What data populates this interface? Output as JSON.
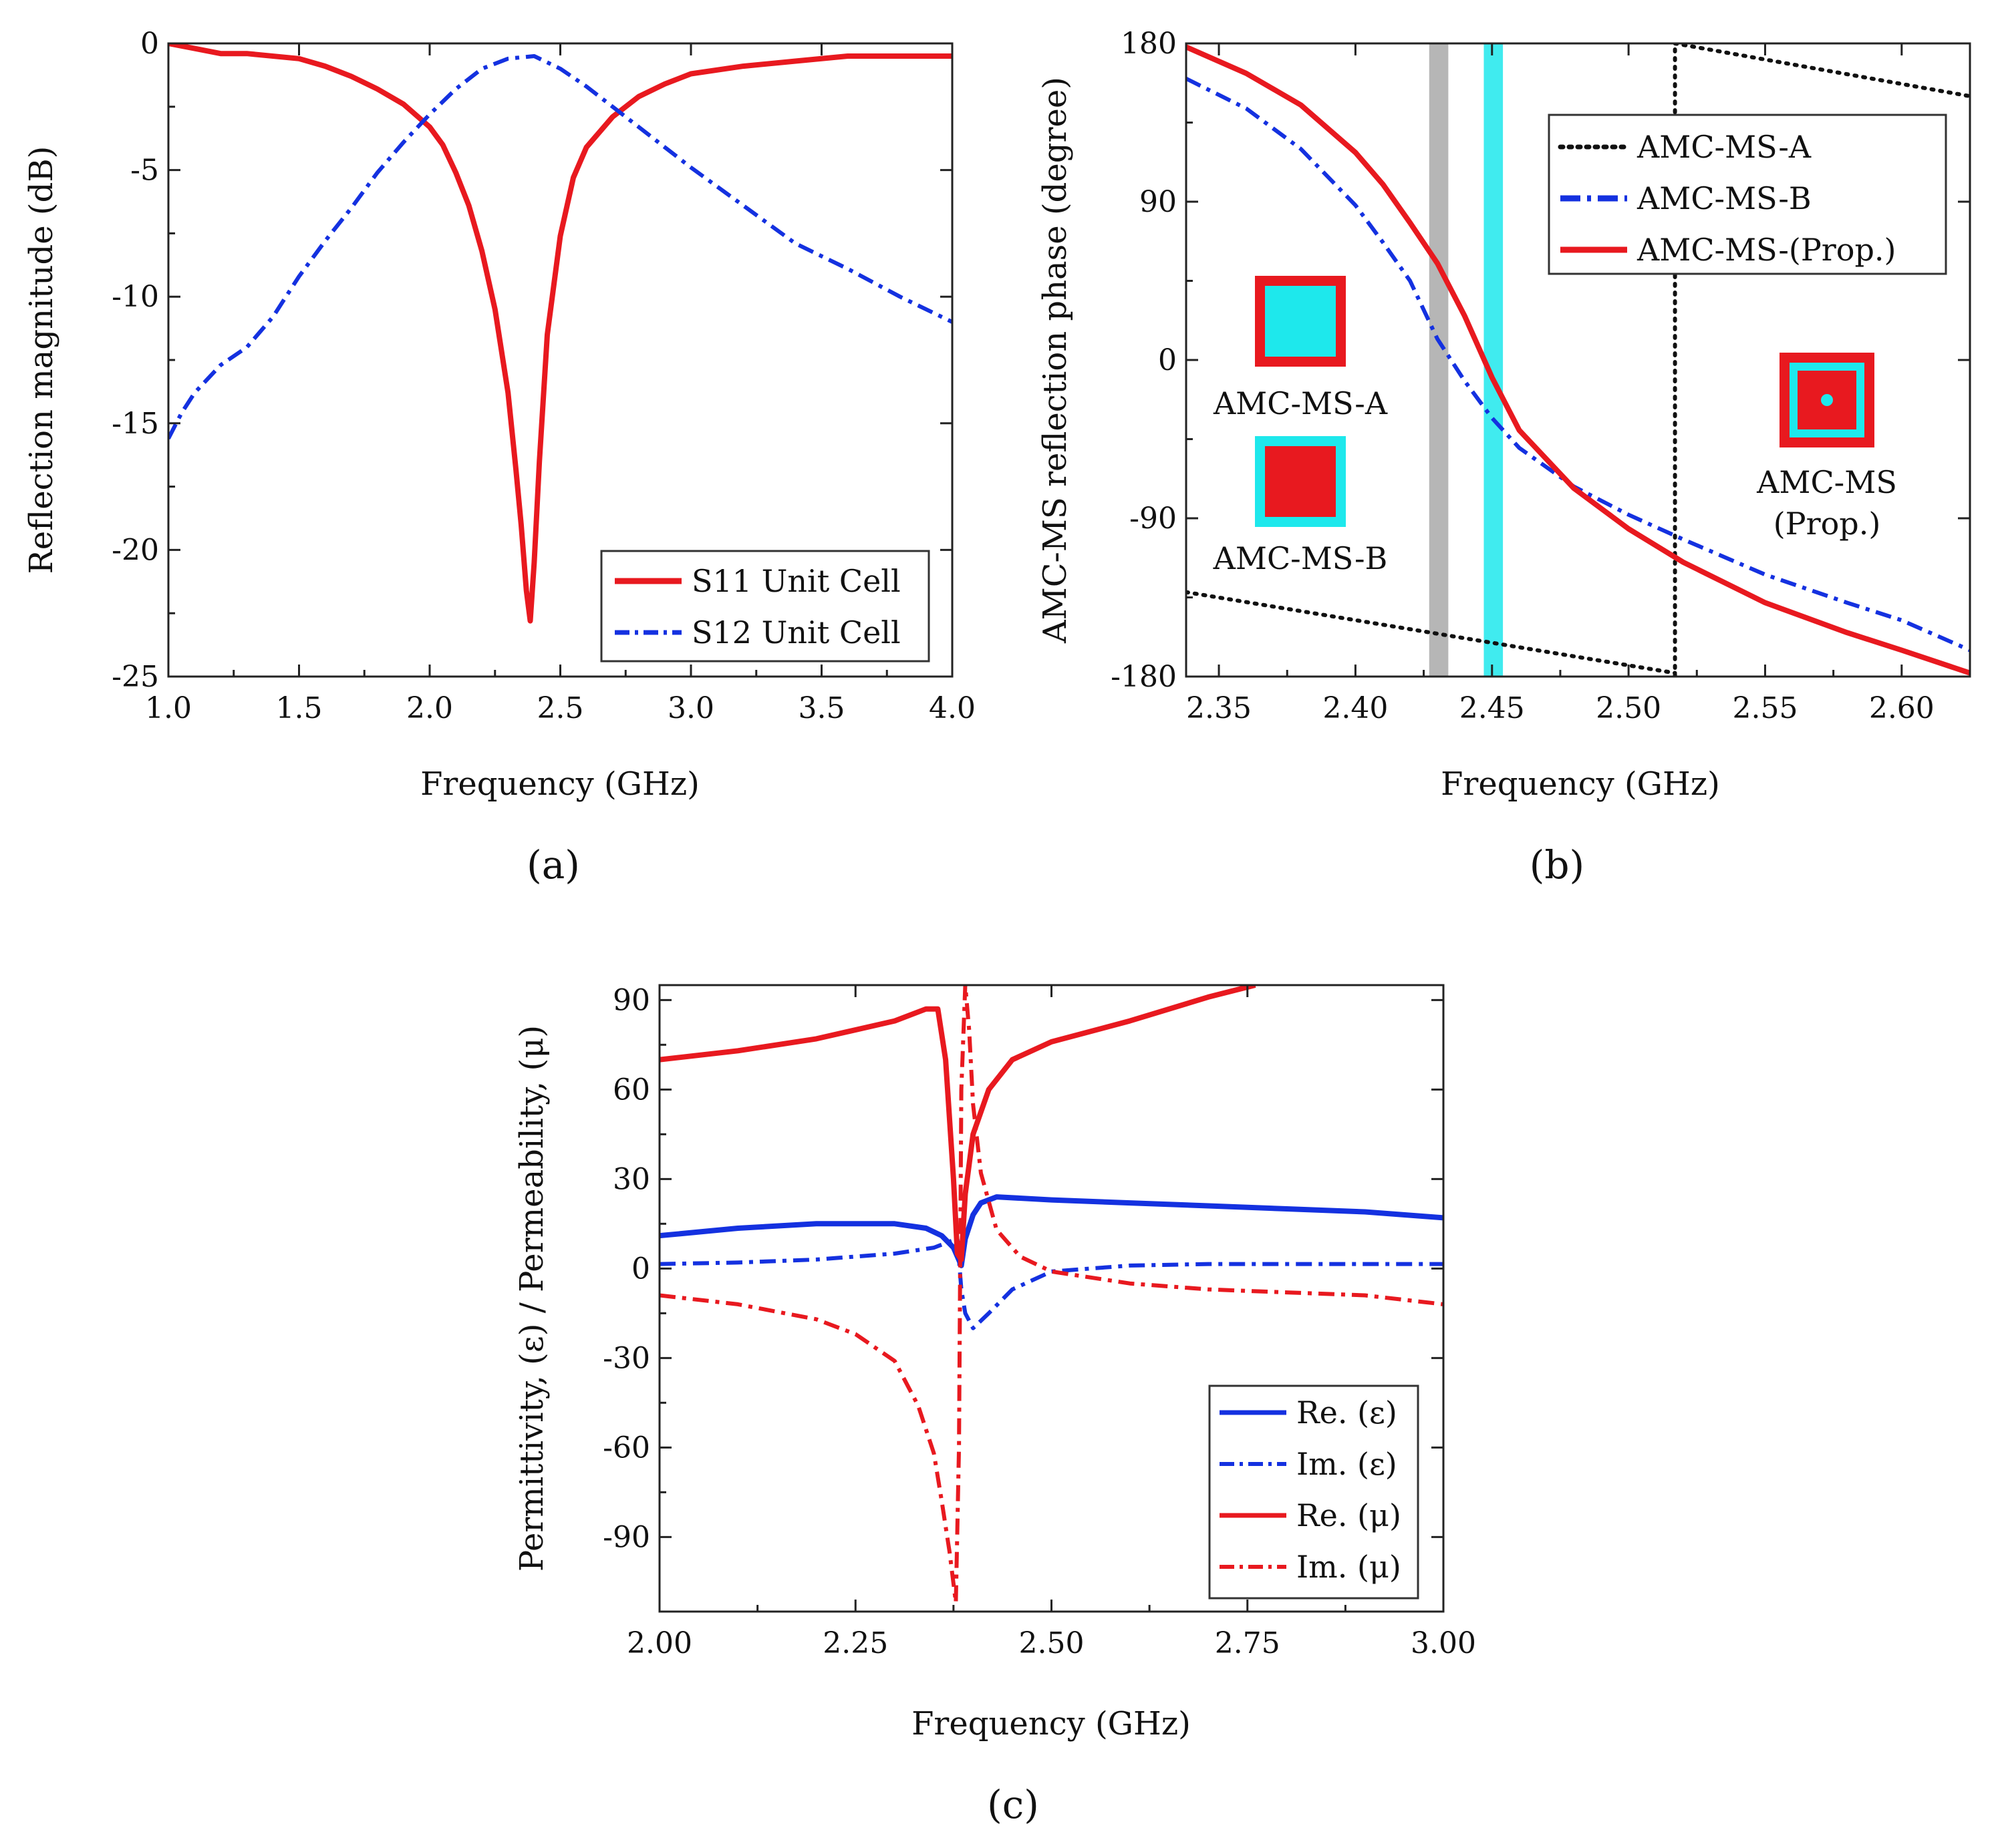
{
  "colors": {
    "red": "#e8191f",
    "blue": "#1431e0",
    "black": "#111111",
    "cyan": "#1ee8ec",
    "gray": "#a9a9a9"
  },
  "chart_data": [
    {
      "id": "a",
      "type": "line",
      "caption": "(a)",
      "xlabel": "Frequency (GHz)",
      "ylabel": "Reflection magnitude (dB)",
      "xlim": [
        1.0,
        4.0
      ],
      "ylim": [
        -25,
        0
      ],
      "xticks": [
        1.0,
        1.5,
        2.0,
        2.5,
        3.0,
        3.5,
        4.0
      ],
      "xtick_labels": [
        "1.0",
        "1.5",
        "2.0",
        "2.5",
        "3.0",
        "3.5",
        "4.0"
      ],
      "yticks": [
        0,
        -5,
        -10,
        -15,
        -20,
        -25
      ],
      "ytick_labels": [
        "0",
        "-5",
        "-10",
        "-15",
        "-20",
        "-25"
      ],
      "legend_position": "bottom-right",
      "series": [
        {
          "name": "S11 Unit Cell",
          "color": "#e8191f",
          "dash": "solid",
          "x": [
            1.0,
            1.1,
            1.2,
            1.3,
            1.5,
            1.6,
            1.7,
            1.8,
            1.9,
            2.0,
            2.05,
            2.1,
            2.15,
            2.2,
            2.25,
            2.3,
            2.33,
            2.35,
            2.37,
            2.385,
            2.4,
            2.42,
            2.45,
            2.5,
            2.55,
            2.6,
            2.7,
            2.8,
            2.9,
            3.0,
            3.2,
            3.4,
            3.6,
            3.8,
            4.0
          ],
          "y": [
            0,
            -0.2,
            -0.4,
            -0.4,
            -0.6,
            -0.9,
            -1.3,
            -1.8,
            -2.4,
            -3.3,
            -4.0,
            -5.1,
            -6.4,
            -8.2,
            -10.5,
            -13.8,
            -16.8,
            -19.0,
            -21.6,
            -22.8,
            -20.5,
            -16.5,
            -11.5,
            -7.6,
            -5.3,
            -4.1,
            -2.9,
            -2.1,
            -1.6,
            -1.2,
            -0.9,
            -0.7,
            -0.5,
            -0.5,
            -0.5
          ]
        },
        {
          "name": "S12 Unit Cell",
          "color": "#1431e0",
          "dash": "dashdot",
          "x": [
            1.0,
            1.05,
            1.1,
            1.2,
            1.3,
            1.4,
            1.5,
            1.6,
            1.7,
            1.8,
            1.9,
            2.0,
            2.1,
            2.2,
            2.3,
            2.4,
            2.5,
            2.6,
            2.7,
            2.8,
            2.9,
            3.0,
            3.2,
            3.4,
            3.6,
            3.8,
            4.0
          ],
          "y": [
            -15.6,
            -14.6,
            -13.8,
            -12.7,
            -12.0,
            -10.8,
            -9.2,
            -7.8,
            -6.5,
            -5.1,
            -3.9,
            -2.8,
            -1.8,
            -1.0,
            -0.6,
            -0.5,
            -1.0,
            -1.7,
            -2.5,
            -3.3,
            -4.1,
            -4.9,
            -6.4,
            -7.9,
            -8.9,
            -10.0,
            -11.0
          ]
        }
      ]
    },
    {
      "id": "b",
      "type": "line",
      "caption": "(b)",
      "xlabel": "Frequency (GHz)",
      "ylabel": "AMC-MS reflection phase (degree)",
      "xlim": [
        2.338,
        2.625
      ],
      "ylim": [
        -180,
        180
      ],
      "xticks": [
        2.35,
        2.4,
        2.45,
        2.5,
        2.55,
        2.6
      ],
      "xtick_labels": [
        "2.35",
        "2.40",
        "2.45",
        "2.50",
        "2.55",
        "2.60"
      ],
      "yticks": [
        180,
        90,
        0,
        -90,
        -180
      ],
      "ytick_labels": [
        "180",
        "90",
        "0",
        "-90",
        "-180"
      ],
      "legend_position": "top-right",
      "bands": [
        {
          "x0": 2.427,
          "x1": 2.434,
          "color": "#a9a9a9"
        },
        {
          "x0": 2.447,
          "x1": 2.454,
          "color": "#1ee8ec"
        }
      ],
      "series": [
        {
          "name": "AMC-MS-A",
          "color": "#111111",
          "dash": "dotted",
          "x": [
            2.338,
            2.517,
            2.517,
            2.625
          ],
          "y": [
            -132,
            -178,
            180,
            150
          ]
        },
        {
          "name": "AMC-MS-B",
          "color": "#1431e0",
          "dash": "dashdot",
          "x": [
            2.338,
            2.36,
            2.38,
            2.4,
            2.41,
            2.42,
            2.43,
            2.44,
            2.45,
            2.46,
            2.48,
            2.5,
            2.52,
            2.55,
            2.58,
            2.6,
            2.625
          ],
          "y": [
            160,
            143,
            120,
            88,
            67,
            45,
            12,
            -12,
            -33,
            -50,
            -72,
            -88,
            -102,
            -122,
            -138,
            -148,
            -165
          ]
        },
        {
          "name": "AMC-MS-(Prop.)",
          "color": "#e8191f",
          "dash": "solid",
          "x": [
            2.338,
            2.36,
            2.38,
            2.4,
            2.41,
            2.42,
            2.43,
            2.44,
            2.45,
            2.46,
            2.48,
            2.5,
            2.52,
            2.55,
            2.58,
            2.6,
            2.625
          ],
          "y": [
            178,
            163,
            145,
            118,
            100,
            78,
            55,
            25,
            -10,
            -40,
            -73,
            -96,
            -115,
            -138,
            -155,
            -165,
            -178
          ]
        }
      ],
      "insets": [
        {
          "label": "AMC-MS-A",
          "outer": "#e8191f",
          "inner": "#1ee8ec",
          "dot": false
        },
        {
          "label": "AMC-MS-B",
          "outer": "#1ee8ec",
          "inner": "#e8191f",
          "dot": false
        },
        {
          "label": "AMC-MS\n(Prop.)",
          "outer": "#e8191f",
          "inner": "#1ee8ec",
          "core": "#e8191f",
          "dot": true
        }
      ]
    },
    {
      "id": "c",
      "type": "line",
      "caption": "(c)",
      "xlabel": "Frequency (GHz)",
      "ylabel": "Permittivity, (ε) / Permeability, (μ)",
      "xlim": [
        2.0,
        3.0
      ],
      "ylim": [
        -115,
        95
      ],
      "xticks": [
        2.0,
        2.25,
        2.5,
        2.75,
        3.0
      ],
      "xtick_labels": [
        "2.00",
        "2.25",
        "2.50",
        "2.75",
        "3.00"
      ],
      "yticks": [
        90,
        60,
        30,
        0,
        -30,
        -60,
        -90
      ],
      "ytick_labels": [
        "90",
        "60",
        "30",
        "0",
        "-30",
        "-60",
        "-90"
      ],
      "legend_position": "bottom-right",
      "series": [
        {
          "name": "Re. (ε)",
          "color": "#1431e0",
          "dash": "solid",
          "x": [
            2.0,
            2.1,
            2.2,
            2.3,
            2.34,
            2.36,
            2.375,
            2.385,
            2.39,
            2.4,
            2.41,
            2.43,
            2.5,
            2.6,
            2.7,
            2.8,
            2.9,
            3.0
          ],
          "y": [
            11,
            13.5,
            15,
            15,
            13.5,
            11,
            7,
            1,
            10,
            18,
            22,
            24,
            23,
            22,
            21,
            20,
            19,
            17
          ]
        },
        {
          "name": "Im. (ε)",
          "color": "#1431e0",
          "dash": "dashdot",
          "x": [
            2.0,
            2.1,
            2.2,
            2.3,
            2.35,
            2.37,
            2.38,
            2.385,
            2.39,
            2.4,
            2.42,
            2.45,
            2.5,
            2.6,
            2.7,
            2.8,
            2.9,
            3.0
          ],
          "y": [
            1.5,
            2,
            3,
            5,
            7,
            9,
            10,
            -7,
            -15,
            -20,
            -15,
            -7,
            -1,
            1,
            1.5,
            1.5,
            1.5,
            1.5
          ]
        },
        {
          "name": "Re. (μ)",
          "color": "#e8191f",
          "dash": "solid",
          "x": [
            2.0,
            2.1,
            2.2,
            2.3,
            2.34,
            2.355,
            2.365,
            2.375,
            2.38,
            2.385,
            2.39,
            2.4,
            2.42,
            2.45,
            2.5,
            2.6,
            2.7,
            2.76
          ],
          "y": [
            70,
            73,
            77,
            83,
            87,
            87,
            70,
            30,
            5,
            3,
            25,
            45,
            60,
            70,
            76,
            83,
            91,
            95
          ]
        },
        {
          "name": "Im. (μ)",
          "color": "#e8191f",
          "dash": "dashdot",
          "x": [
            2.0,
            2.1,
            2.2,
            2.25,
            2.3,
            2.33,
            2.35,
            2.36,
            2.37,
            2.378,
            2.382,
            2.385,
            2.39,
            2.395,
            2.4,
            2.41,
            2.43,
            2.46,
            2.5,
            2.6,
            2.7,
            2.8,
            2.9,
            3.0
          ],
          "y": [
            -9,
            -12,
            -17,
            -22,
            -31,
            -46,
            -62,
            -78,
            -95,
            -112,
            -60,
            60,
            95,
            80,
            55,
            32,
            13,
            4,
            -1,
            -5,
            -7,
            -8,
            -9,
            -12
          ]
        }
      ]
    }
  ]
}
